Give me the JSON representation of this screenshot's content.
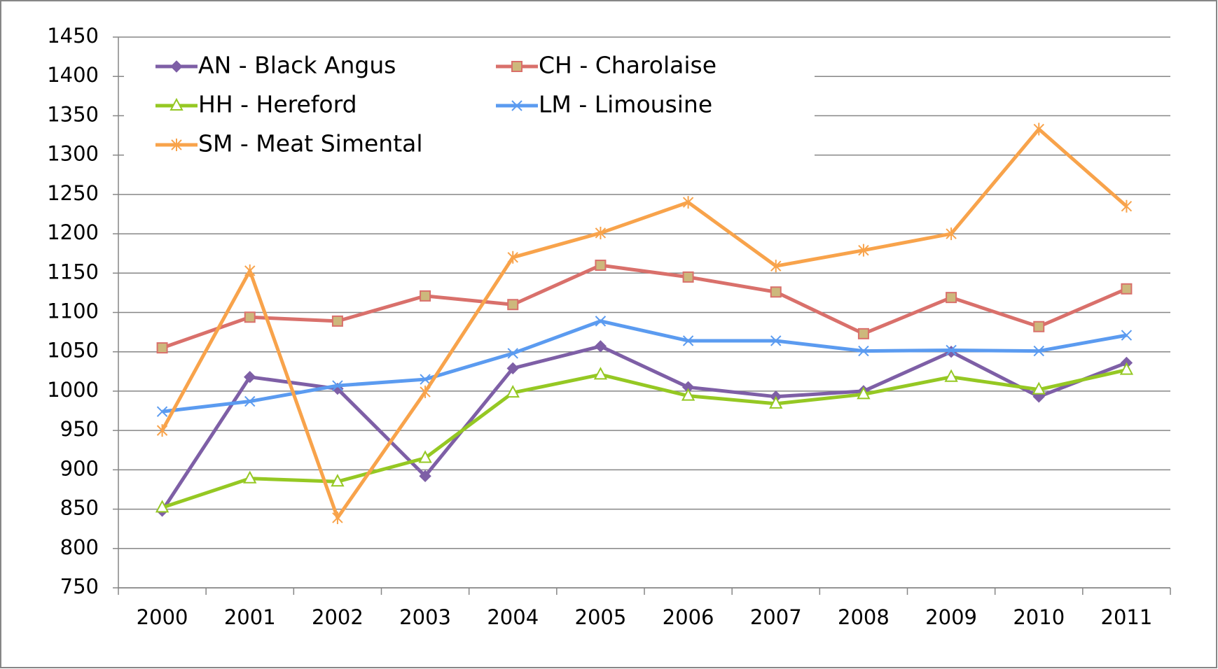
{
  "chart_data": {
    "type": "line",
    "categories": [
      "2000",
      "2001",
      "2002",
      "2003",
      "2004",
      "2005",
      "2006",
      "2007",
      "2008",
      "2009",
      "2010",
      "2011"
    ],
    "series": [
      {
        "name": "AN - Black Angus",
        "color": "#7e5fa6",
        "marker": "diamond",
        "values": [
          848,
          1018,
          1003,
          892,
          1029,
          1057,
          1005,
          993,
          1000,
          1050,
          993,
          1036
        ]
      },
      {
        "name": "CH - Charolaise",
        "color": "#d9706b",
        "marker": "square",
        "values": [
          1055,
          1094,
          1089,
          1121,
          1110,
          1160,
          1145,
          1126,
          1073,
          1119,
          1082,
          1130
        ]
      },
      {
        "name": "HH - Hereford",
        "color": "#95c823",
        "marker": "triangle",
        "values": [
          852,
          889,
          885,
          915,
          998,
          1021,
          994,
          984,
          996,
          1018,
          1002,
          1027
        ]
      },
      {
        "name": "LM - Limousine",
        "color": "#5b9bf0",
        "marker": "x",
        "values": [
          974,
          987,
          1007,
          1015,
          1048,
          1089,
          1064,
          1064,
          1051,
          1052,
          1051,
          1071
        ]
      },
      {
        "name": "SM - Meat Simental",
        "color": "#f8a34b",
        "marker": "star",
        "values": [
          950,
          1153,
          839,
          999,
          1170,
          1201,
          1240,
          1159,
          1179,
          1200,
          1333,
          1235
        ]
      }
    ],
    "ylim": [
      750,
      1450
    ],
    "yticks": [
      750,
      800,
      850,
      900,
      950,
      1000,
      1050,
      1100,
      1150,
      1200,
      1250,
      1300,
      1350,
      1400,
      1450
    ],
    "grid": true,
    "legend": "top-left"
  }
}
